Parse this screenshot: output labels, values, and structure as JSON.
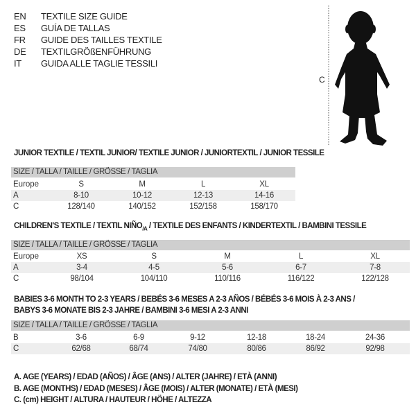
{
  "languages": [
    {
      "code": "EN",
      "text": "TEXTILE SIZE GUIDE"
    },
    {
      "code": "ES",
      "text": "GUÍA DE TALLAS"
    },
    {
      "code": "FR",
      "text": "GUIDE DES TAILLES TEXTILE"
    },
    {
      "code": "DE",
      "text": "TEXTILGRÖßENFÜHRUNG"
    },
    {
      "code": "IT",
      "text": "GUIDA ALLE TAGLIE TESSILI"
    }
  ],
  "figure": {
    "label": "C",
    "icon": "toddler-silhouette"
  },
  "junior": {
    "title": "JUNIOR TEXTILE / TEXTIL JUNIOR/ TEXTILE JUNIOR / JUNIORTEXTIL / JUNIOR TESSILE",
    "header": "SIZE / TALLA / TAILLE / GRÖSSE / TAGLIA",
    "rows": [
      {
        "label": "Europe",
        "values": [
          "S",
          "M",
          "L",
          "XL"
        ]
      },
      {
        "label": "A",
        "values": [
          "8-10",
          "10-12",
          "12-13",
          "14-16"
        ]
      },
      {
        "label": "C",
        "values": [
          "128/140",
          "140/152",
          "152/158",
          "158/170"
        ]
      }
    ]
  },
  "children": {
    "title_main": "CHILDREN'S TEXTILE / TEXTIL NIÑO",
    "title_sub": "/A",
    "title_rest": " / TEXTILE DES ENFANTS / KINDERTEXTIL / BAMBINI TESSILE",
    "header": "SIZE / TALLA / TAILLE / GRÖSSE / TAGLIA",
    "rows": [
      {
        "label": "Europe",
        "values": [
          "XS",
          "S",
          "M",
          "L",
          "XL"
        ]
      },
      {
        "label": "A",
        "values": [
          "3-4",
          "4-5",
          "5-6",
          "6-7",
          "7-8"
        ]
      },
      {
        "label": "C",
        "values": [
          "98/104",
          "104/110",
          "110/116",
          "116/122",
          "122/128"
        ]
      }
    ]
  },
  "babies": {
    "title_line1": "BABIES 3-6 MONTH TO 2-3 YEARS / BEBÉS 3-6 MESES A 2-3 AÑOS / BÉBÉS 3-6 MOIS À 2-3 ANS /",
    "title_line2": "BABYS 3-6 MONATE BIS 2-3 JAHRE / BAMBINI 3-6 MESI A 2-3 ANNI",
    "header": "SIZE / TALLA / TAILLE / GRÖSSE / TAGLIA",
    "rows": [
      {
        "label": "B",
        "values": [
          "3-6",
          "6-9",
          "9-12",
          "12-18",
          "18-24",
          "24-36"
        ]
      },
      {
        "label": "C",
        "values": [
          "62/68",
          "68/74",
          "74/80",
          "80/86",
          "86/92",
          "92/98"
        ]
      }
    ]
  },
  "legend": [
    "A. AGE (YEARS) / EDAD (AÑOS) / ÂGE (ANS) / ALTER (JAHRE) / ETÀ (ANNI)",
    "B. AGE (MONTHS) / EDAD (MESES) / ÂGE (MOIS) / ALTER (MONATE) / ETÀ (MESI)",
    "C. (cm) HEIGHT / ALTURA / HAUTEUR / HÖHE / ALTEZZA"
  ]
}
